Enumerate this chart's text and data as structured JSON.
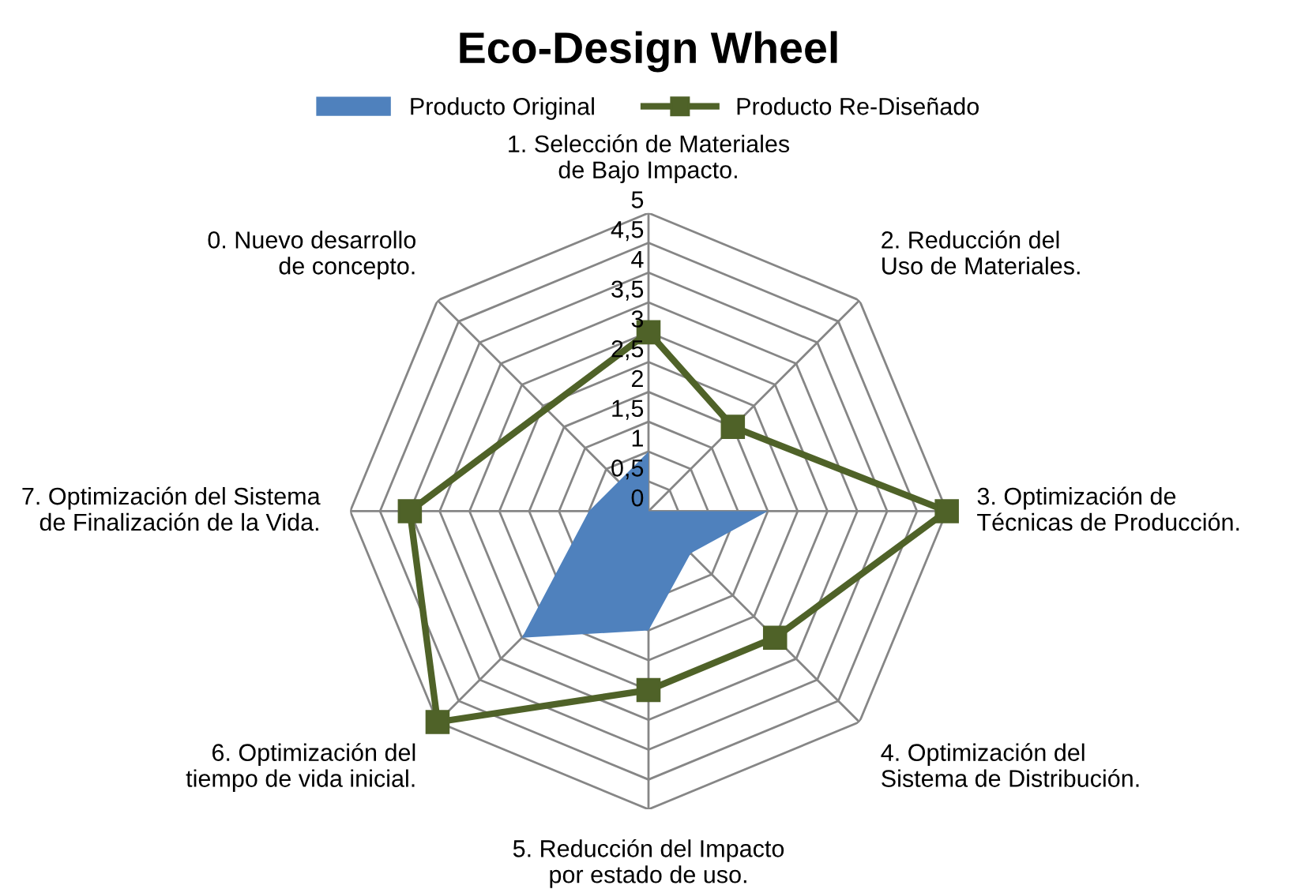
{
  "chart_data": {
    "type": "radar",
    "title": "Eco-Design Wheel",
    "categories": [
      "1. Selección de Materiales de Bajo Impacto.",
      "2. Reducción del Uso de Materiales.",
      "3. Optimización de Técnicas de Producción.",
      "4. Optimización del Sistema de Distribución.",
      "5. Reducción del Impacto por estado de uso.",
      "6. Optimización del tiempo de vida inicial.",
      "7. Optimización del Sistema de Finalización de la Vida.",
      "0. Nuevo desarrollo de concepto."
    ],
    "series": [
      {
        "name": "Producto Original",
        "type": "area",
        "color": "#4f81bd",
        "values": [
          1,
          0,
          2,
          1,
          2,
          3,
          1,
          null
        ]
      },
      {
        "name": "Producto Re-Diseñado",
        "color": "#4f6228",
        "marker": "square",
        "values": [
          3,
          2,
          5,
          3,
          3,
          5,
          4,
          null
        ]
      }
    ],
    "ylim": [
      0,
      5
    ],
    "yticks": [
      0,
      {
        "value": 0.5,
        "label": "0,5"
      },
      1,
      {
        "value": 1.5,
        "label": "1,5"
      },
      2,
      {
        "value": 2.5,
        "label": "2,5"
      },
      3,
      {
        "value": 3.5,
        "label": "3,5"
      },
      4,
      {
        "value": 4.5,
        "label": "4,5"
      },
      5
    ],
    "grid": true,
    "legend": "top"
  }
}
